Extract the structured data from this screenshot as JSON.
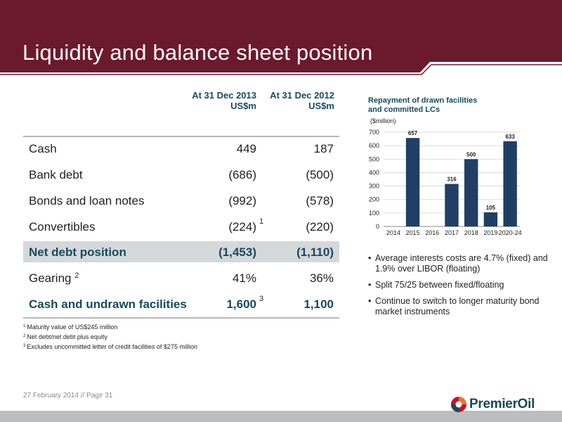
{
  "header": {
    "title": "Liquidity and balance sheet position",
    "color": "#6b1a2e"
  },
  "table": {
    "columns": [
      {
        "line1": "At 31 Dec 2013",
        "line2": "US$m"
      },
      {
        "line1": "At 31 Dec 2012",
        "line2": "US$m"
      }
    ],
    "rows": [
      {
        "label": "Cash",
        "v2013": "449",
        "v2012": "187"
      },
      {
        "label": "Bank debt",
        "v2013": "(686)",
        "v2012": "(500)"
      },
      {
        "label": "Bonds and loan notes",
        "v2013": "(992)",
        "v2012": "(578)"
      },
      {
        "label": "Convertibles",
        "v2013": "(224)",
        "v2012": "(220)",
        "v2013_note": "1"
      },
      {
        "label": "Net debt position",
        "v2013": "(1,453)",
        "v2012": "(1,110)"
      },
      {
        "label": "Gearing",
        "label_note": "2",
        "v2013": "41%",
        "v2012": "36%"
      },
      {
        "label": "Cash and undrawn facilities",
        "v2013": "1,600",
        "v2013_note": "3",
        "v2012": "1,100"
      }
    ]
  },
  "footnotes": [
    {
      "num": "1",
      "text": "Maturity value of US$245 million"
    },
    {
      "num": "2",
      "text": "Net debt/net debt plus equity"
    },
    {
      "num": "3",
      "text": "Excludes uncommitted letter of credit facilities of $275 million"
    }
  ],
  "chart_data": {
    "type": "bar",
    "title_line1": "Repayment of drawn facilities",
    "title_line2": "and committed LCs",
    "ylabel": "($million)",
    "categories": [
      "2014",
      "2015",
      "2016",
      "2017",
      "2018",
      "2019",
      "2020-24"
    ],
    "values": [
      0,
      657,
      0,
      316,
      500,
      105,
      633
    ],
    "value_labels": [
      "",
      "657",
      "",
      "316",
      "500",
      "105",
      "633"
    ],
    "yticks": [
      "0",
      "100",
      "200",
      "300",
      "400",
      "500",
      "600",
      "700"
    ],
    "ylim": [
      0,
      700
    ],
    "grid": true,
    "bar_color": "#1f3f66"
  },
  "bullets": [
    "Average interests costs are 4.7% (fixed) and 1.9% over LIBOR (floating)",
    "Split 75/25 between fixed/floating",
    "Continue to switch to longer maturity bond market instruments"
  ],
  "footer": {
    "text": "27 February 2014 // Page 31",
    "logo_text": "PremierOil",
    "logo_icon": "premier-oil-logo-icon"
  }
}
